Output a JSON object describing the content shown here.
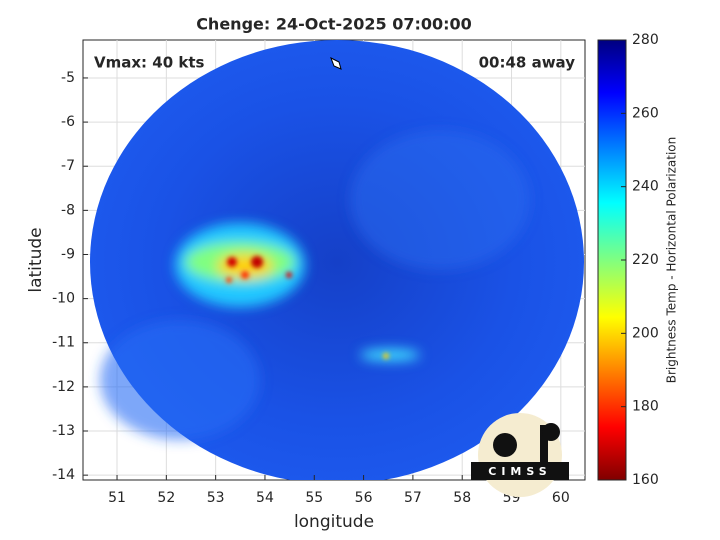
{
  "chart_data": {
    "type": "image-map",
    "title": "Chenge: 24-Oct-2025 07:00:00",
    "xlabel": "longitude",
    "ylabel": "latitude",
    "xlim": [
      50.31,
      60.49
    ],
    "ylim": [
      -14.11,
      -4.14
    ],
    "xticks": [
      51,
      52,
      53,
      54,
      55,
      56,
      57,
      58,
      59,
      60
    ],
    "yticks": [
      -5,
      -6,
      -7,
      -8,
      -9,
      -10,
      -11,
      -12,
      -13,
      -14
    ],
    "grid": true,
    "annotations": [
      "Vmax: 40 kts",
      "00:48 away"
    ],
    "colorbar": {
      "label": "Brightness Temp - Horizontal Polarization",
      "lim": [
        160,
        280
      ],
      "ticks": [
        160,
        180,
        200,
        220,
        240,
        260,
        280
      ]
    },
    "logo": "CIMSS"
  }
}
